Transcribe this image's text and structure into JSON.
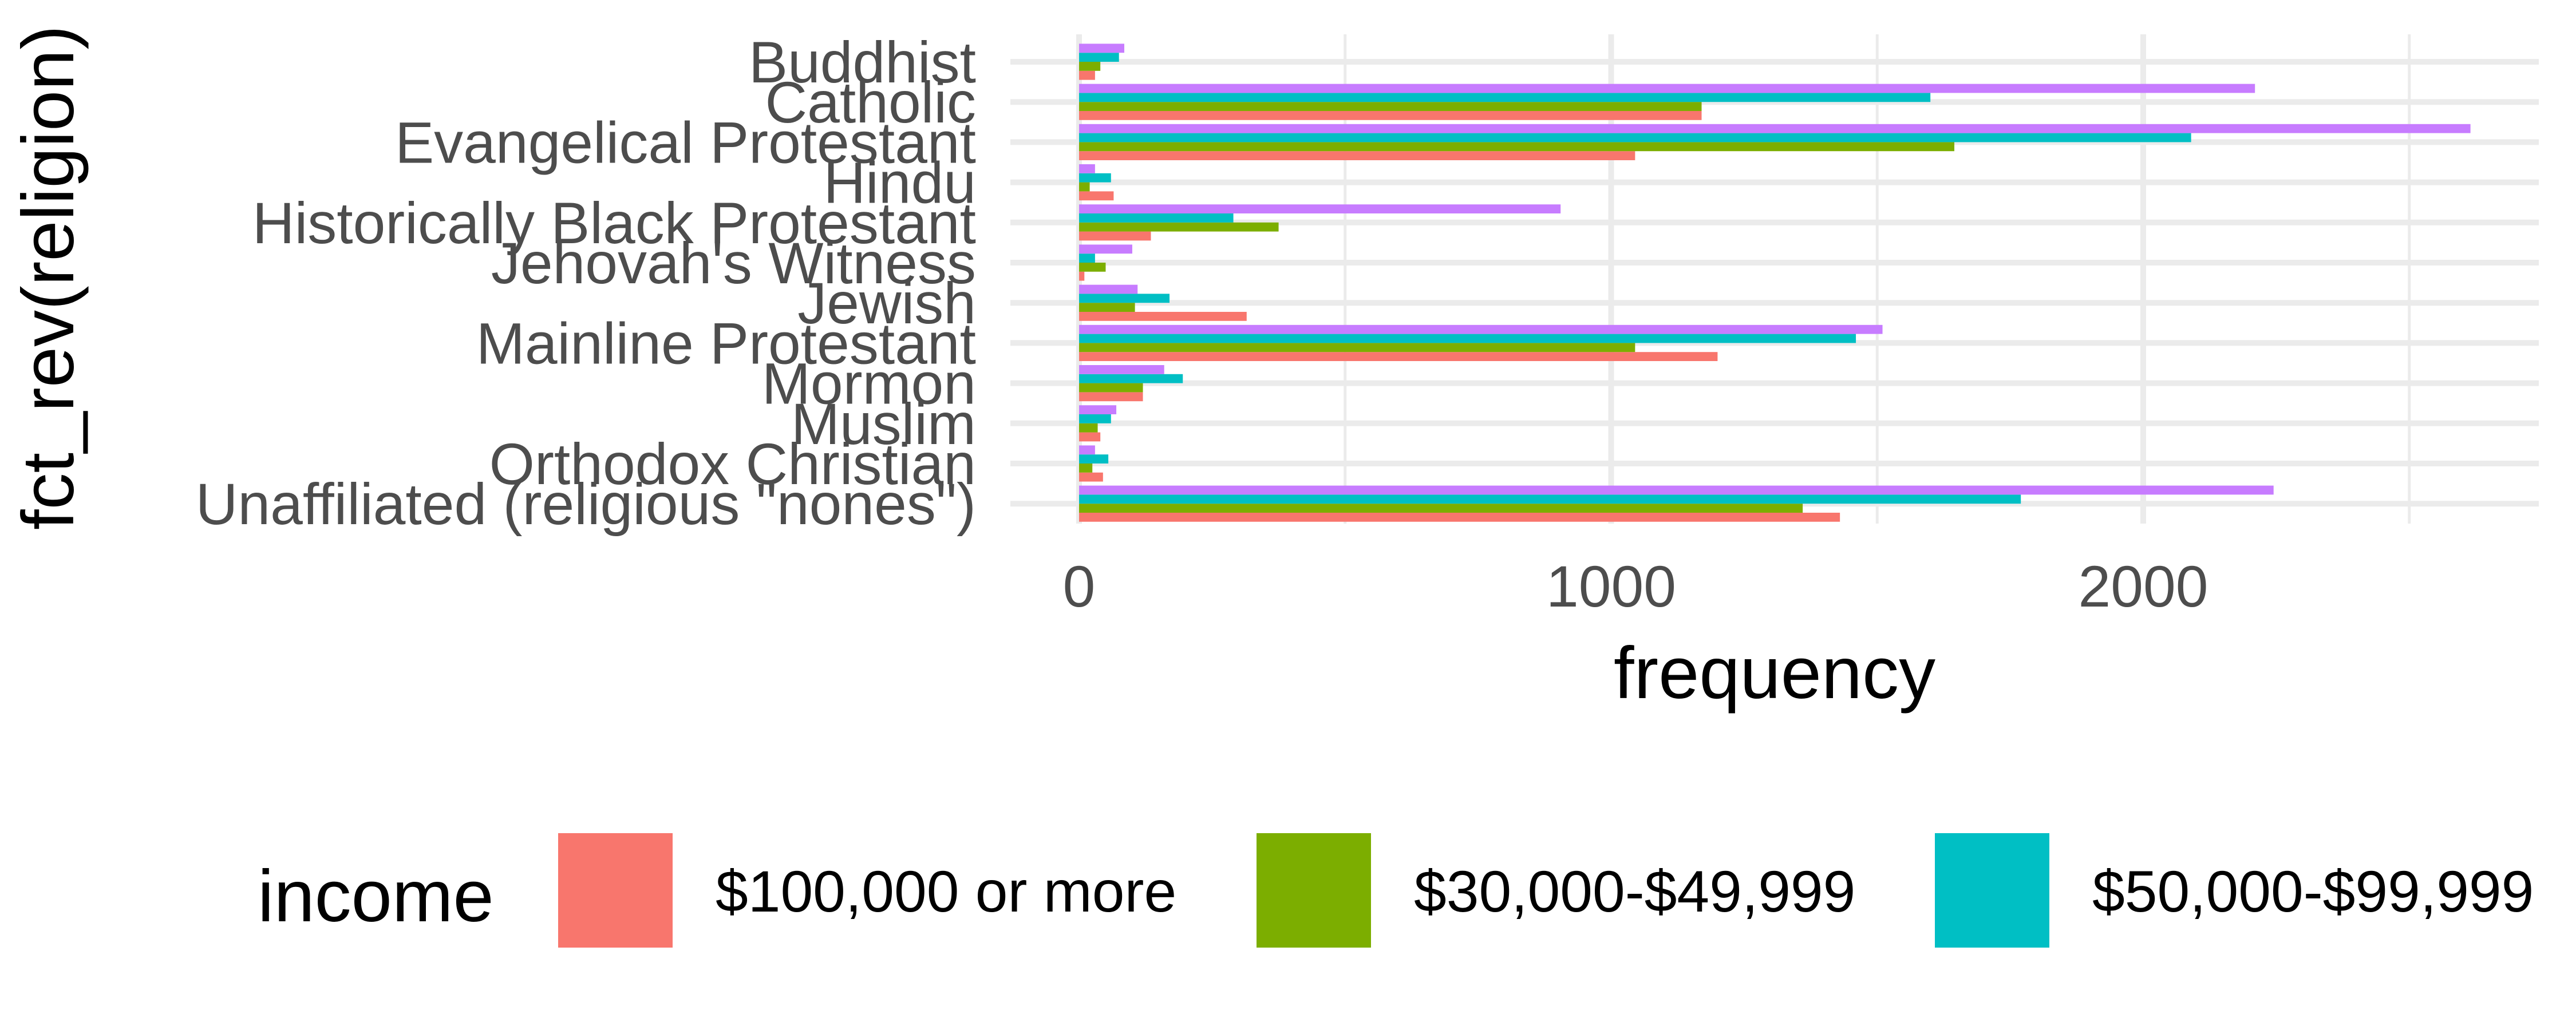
{
  "chart_data": {
    "type": "bar",
    "orientation": "horizontal",
    "position": "dodge",
    "categories": [
      "Buddhist",
      "Catholic",
      "Evangelical Protestant",
      "Hindu",
      "Historically Black Protestant",
      "Jehovah's Witness",
      "Jewish",
      "Mainline Protestant",
      "Mormon",
      "Muslim",
      "Orthodox Christian",
      "Unaffiliated (religious \"nones\")"
    ],
    "series": [
      {
        "name": "$100,000 or more",
        "color": "#F8766D",
        "values": [
          30,
          1170,
          1045,
          65,
          135,
          10,
          315,
          1200,
          120,
          40,
          45,
          1430
        ]
      },
      {
        "name": "$30,000-$49,999",
        "color": "#7CAE00",
        "values": [
          40,
          1170,
          1645,
          20,
          375,
          50,
          105,
          1045,
          120,
          35,
          25,
          1360
        ]
      },
      {
        "name": "$50,000-$99,999",
        "color": "#00BFC4",
        "values": [
          75,
          1600,
          2090,
          60,
          290,
          30,
          170,
          1460,
          195,
          60,
          55,
          1770
        ]
      },
      {
        "name": "",
        "color": "#C77CFF",
        "values": [
          85,
          2210,
          2615,
          30,
          905,
          100,
          110,
          1510,
          160,
          70,
          30,
          2245
        ]
      }
    ],
    "xlabel": "frequency",
    "ylabel": "fct_rev(religion)",
    "xlim": [
      -100,
      2750
    ],
    "xticks": [
      0,
      1000,
      2000
    ],
    "xtick_labels": [
      "0",
      "1000",
      "2000"
    ],
    "grid": true,
    "legend": {
      "title": "income",
      "position": "bottom"
    }
  }
}
